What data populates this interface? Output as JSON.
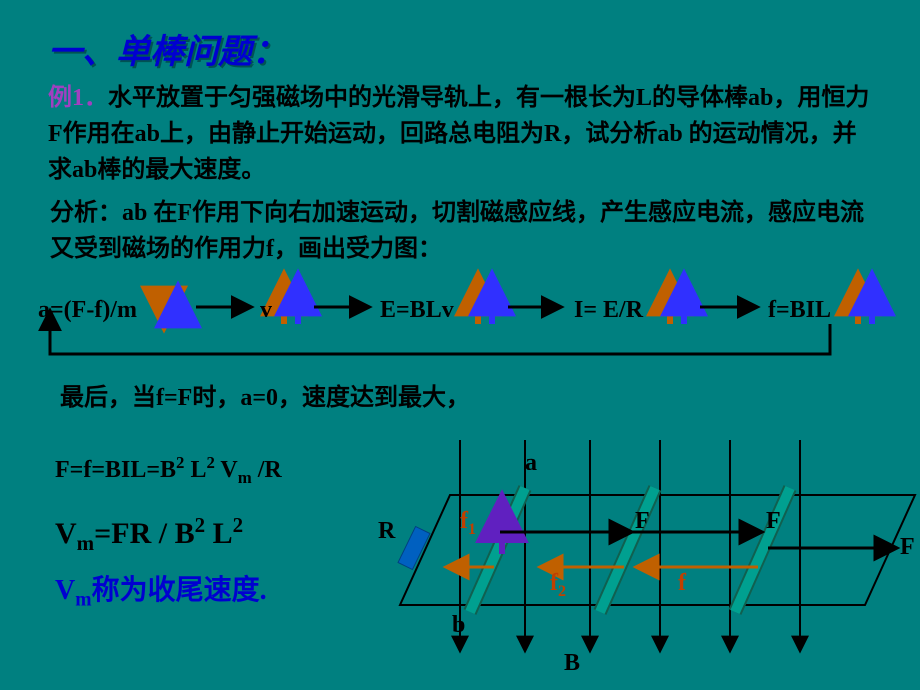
{
  "title": "一、单棒问题：",
  "example_label": "例1．",
  "problem": "水平放置于匀强磁场中的光滑导轨上，有一根长为L的导体棒ab，用恒力F作用在ab上，由静止开始运动，回路总电阻为R，试分析ab 的运动情况，并求ab棒的最大速度。",
  "analysis": "分析：ab 在F作用下向右加速运动，切割磁感应线，产生感应电流，感应电流又受到磁场的作用力f，画出受力图：",
  "flow": {
    "a": "a=(F-f)/m",
    "v": "v",
    "E": "E=BLv",
    "I": "I= E/R",
    "f": "f=BIL"
  },
  "conclusion": "最后，当f=F时，a=0，速度达到最大，",
  "eq1_html": "F=f=BIL=B<sup>2</sup> L<sup>2</sup> V<sub>m</sub> /R",
  "eq2_html": "V<sub>m</sub>=FR / B<sup>2</sup> L<sup>2</sup>",
  "eq3_html": "V<sub>m</sub>称为收尾速度.",
  "diagram": {
    "labels": {
      "a": "a",
      "b": "b",
      "R": "R",
      "B": "B",
      "F1": "F",
      "F2": "F",
      "F3": "F",
      "f": "f",
      "f1": "f₁",
      "f2": "f₂"
    },
    "line_width": 2,
    "colors": {
      "rails": "#000000",
      "bar": "#00a090",
      "bar_border": "#106050",
      "F_arrow": "#000000",
      "f_arrow": "#c06000",
      "purple_arrow": "#6020c0",
      "R_fill": "#0060c0"
    },
    "flow_colors": {
      "horiz": "#000000",
      "pair_left": "#c06000",
      "pair_right": "#3030ff"
    },
    "bg": "#008080"
  },
  "text_color": "#000000",
  "title_color": "#0000d0",
  "purple": "#a040c0",
  "fontsize_title": 34,
  "fontsize_body": 24,
  "fontsize_eq_big": 30
}
